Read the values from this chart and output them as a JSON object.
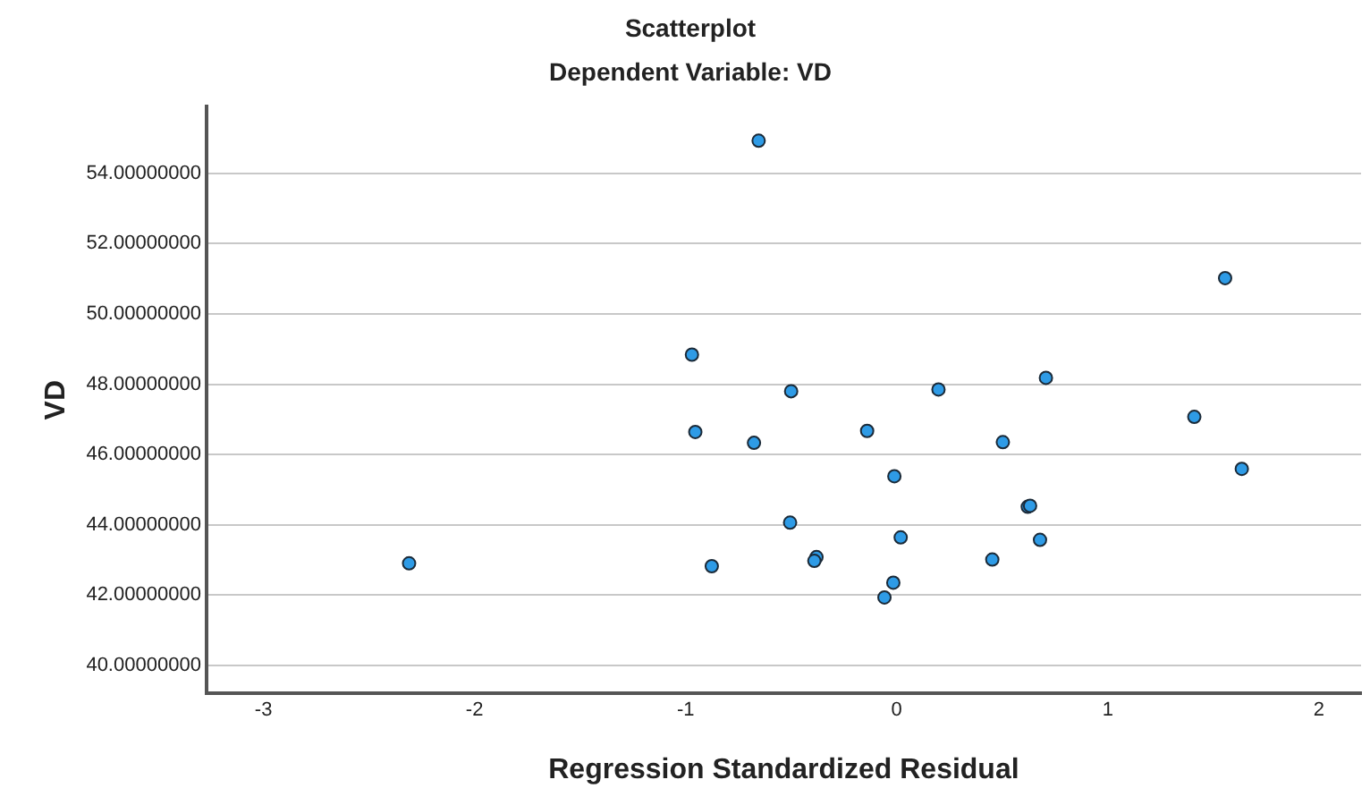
{
  "chart_data": {
    "type": "scatter",
    "title": "Scatterplot",
    "subtitle": "Dependent Variable: VD",
    "xlabel": "Regression Standardized Residual",
    "ylabel": "VD",
    "series": [
      {
        "color": "#2e9be6",
        "x": [
          -2.31,
          -0.654,
          1.556,
          -0.97,
          0.707,
          -0.5,
          0.198,
          1.41,
          -0.954,
          -0.14,
          -0.676,
          0.503,
          1.635,
          -0.011,
          0.621,
          0.632,
          -0.505,
          0.019,
          0.679,
          -0.876,
          -0.38,
          -0.39,
          0.453,
          -0.016,
          -0.058
        ],
        "values": [
          42.9,
          54.93,
          51.02,
          48.84,
          48.18,
          47.8,
          47.85,
          47.07,
          46.64,
          46.67,
          46.33,
          46.35,
          45.59,
          45.38,
          44.51,
          44.54,
          44.06,
          43.64,
          43.57,
          42.82,
          43.08,
          42.97,
          43.01,
          42.35,
          41.93
        ]
      }
    ],
    "xlim": [
      -3.27,
      2.2
    ],
    "xticks": [
      -3,
      -2,
      -1,
      0,
      1,
      2
    ],
    "ylim": [
      39.2,
      55.9
    ],
    "yticks": [
      {
        "value": 40,
        "label": "40.00000000"
      },
      {
        "value": 42,
        "label": "42.00000000"
      },
      {
        "value": 44,
        "label": "44.00000000"
      },
      {
        "value": 46,
        "label": "46.00000000"
      },
      {
        "value": 48,
        "label": "48.00000000"
      },
      {
        "value": 50,
        "label": "50.00000000"
      },
      {
        "value": 52,
        "label": "52.00000000"
      },
      {
        "value": 54,
        "label": "54.00000000"
      }
    ],
    "grid": "y",
    "legend": false,
    "marker": "circle"
  }
}
